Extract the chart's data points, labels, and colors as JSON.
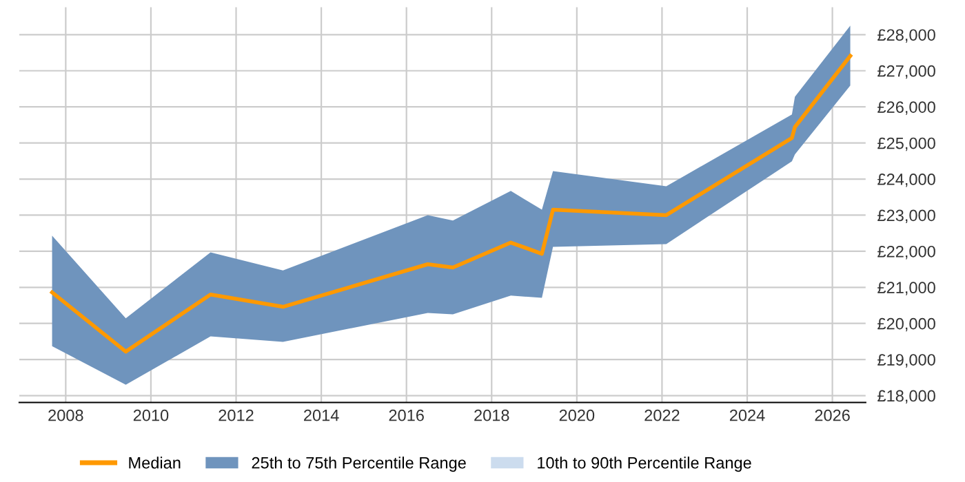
{
  "chart_data": {
    "type": "line",
    "x": [
      2007.68,
      2009.41,
      2011.4,
      2013.1,
      2016.5,
      2017.09,
      2018.45,
      2019.18,
      2019.44,
      2022.1,
      2025.05,
      2025.12,
      2026.42
    ],
    "series": [
      {
        "name": "Median",
        "color": "#ff9900",
        "values": [
          20860,
          19220,
          20800,
          20460,
          21640,
          21550,
          22240,
          21930,
          23150,
          23000,
          25140,
          25440,
          27410
        ],
        "lower": [
          19370,
          18300,
          19640,
          19490,
          20290,
          20250,
          20770,
          20710,
          22120,
          22200,
          24490,
          24680,
          26590
        ],
        "upper": [
          22430,
          20140,
          21970,
          21470,
          23000,
          22850,
          23670,
          23150,
          24220,
          23800,
          25790,
          26280,
          28250
        ]
      },
      {
        "name": "25th to 75th Percentile Range",
        "type": "area",
        "color": "#6f94bd",
        "values": [
          null,
          null,
          null,
          null,
          null,
          null,
          null,
          null,
          null,
          null,
          null,
          null,
          null
        ]
      },
      {
        "name": "10th to 90th Percentile Range",
        "type": "area",
        "color": "#ccdcee",
        "values": [
          null,
          null,
          null,
          null,
          null,
          null,
          null,
          null,
          null,
          null,
          null,
          null,
          null
        ]
      }
    ],
    "xlim": [
      2006.91,
      2026.78
    ],
    "xticks": [
      2008,
      2010,
      2012,
      2014,
      2016,
      2018,
      2020,
      2022,
      2024,
      2026
    ],
    "ylim": [
      17810,
      28760
    ],
    "yticks": [
      {
        "value": 18000,
        "label": "£18,000"
      },
      {
        "value": 19000,
        "label": "£19,000"
      },
      {
        "value": 20000,
        "label": "£20,000"
      },
      {
        "value": 21000,
        "label": "£21,000"
      },
      {
        "value": 22000,
        "label": "£22,000"
      },
      {
        "value": 23000,
        "label": "£23,000"
      },
      {
        "value": 24000,
        "label": "£24,000"
      },
      {
        "value": 25000,
        "label": "£25,000"
      },
      {
        "value": 26000,
        "label": "£26,000"
      },
      {
        "value": 27000,
        "label": "£27,000"
      },
      {
        "value": 28000,
        "label": "£28,000"
      }
    ],
    "grid": true,
    "legend": "bottom"
  }
}
